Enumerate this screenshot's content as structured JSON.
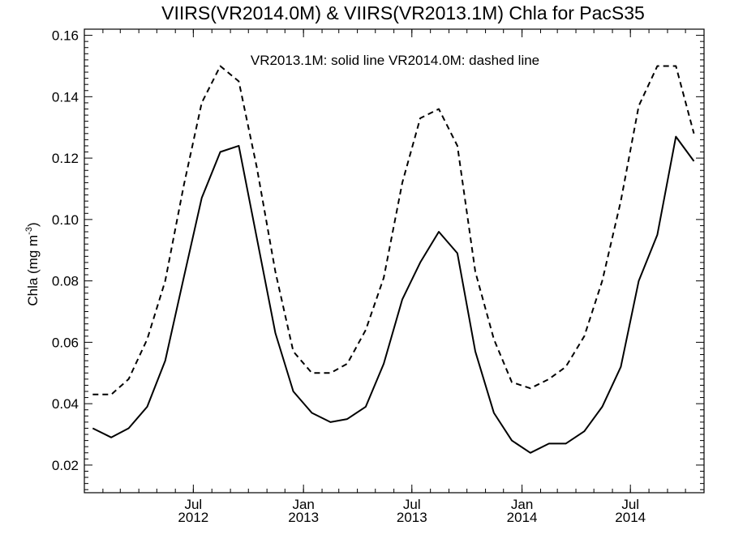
{
  "chart_data": {
    "type": "line",
    "title": "VIIRS(VR2014.0M) & VIIRS(VR2013.1M)  Chla for PacS35",
    "ylabel": "Chla (mg m",
    "ylabel_sup": "-3",
    "ylabel_close": ")",
    "annotation": "VR2013.1M: solid line   VR2014.0M: dashed line",
    "ylim": [
      0.011,
      0.162
    ],
    "xlim": [
      "2012-01-01",
      "2014-11-01"
    ],
    "yticks": [
      0.02,
      0.04,
      0.06,
      0.08,
      0.1,
      0.12,
      0.14,
      0.16
    ],
    "ytick_labels": [
      "0.02",
      "0.04",
      "0.06",
      "0.08",
      "0.10",
      "0.12",
      "0.14",
      "0.16"
    ],
    "xticks": [
      {
        "date": "2012-07-01",
        "month": "Jul",
        "year": "2012"
      },
      {
        "date": "2013-01-01",
        "month": "Jan",
        "year": "2013"
      },
      {
        "date": "2013-07-01",
        "month": "Jul",
        "year": "2013"
      },
      {
        "date": "2014-01-01",
        "month": "Jan",
        "year": "2014"
      },
      {
        "date": "2014-07-01",
        "month": "Jul",
        "year": "2014"
      }
    ],
    "grid": false,
    "x": [
      "2012-01",
      "2012-02",
      "2012-03",
      "2012-04",
      "2012-05",
      "2012-06",
      "2012-07",
      "2012-08",
      "2012-09",
      "2012-10",
      "2012-11",
      "2012-12",
      "2013-01",
      "2013-02",
      "2013-03",
      "2013-04",
      "2013-05",
      "2013-06",
      "2013-07",
      "2013-08",
      "2013-09",
      "2013-10",
      "2013-11",
      "2013-12",
      "2014-01",
      "2014-02",
      "2014-03",
      "2014-04",
      "2014-05",
      "2014-06",
      "2014-07",
      "2014-08",
      "2014-09",
      "2014-10"
    ],
    "series": [
      {
        "name": "VR2013.1M",
        "style": "solid",
        "color": "#000000",
        "values": [
          0.032,
          0.029,
          0.032,
          0.039,
          0.054,
          0.081,
          0.107,
          0.122,
          0.124,
          0.094,
          0.063,
          0.044,
          0.037,
          0.034,
          0.035,
          0.039,
          0.053,
          0.074,
          0.086,
          0.096,
          0.089,
          0.057,
          0.037,
          0.028,
          0.024,
          0.027,
          0.027,
          0.031,
          0.039,
          0.052,
          0.08,
          0.095,
          0.127,
          0.119
        ]
      },
      {
        "name": "VR2014.0M",
        "style": "dashed",
        "color": "#000000",
        "values": [
          0.043,
          0.043,
          0.048,
          0.061,
          0.08,
          0.111,
          0.138,
          0.15,
          0.145,
          0.117,
          0.083,
          0.057,
          0.05,
          0.05,
          0.053,
          0.064,
          0.081,
          0.112,
          0.133,
          0.136,
          0.124,
          0.083,
          0.061,
          0.047,
          0.045,
          0.048,
          0.052,
          0.062,
          0.08,
          0.106,
          0.137,
          0.15,
          0.15,
          0.128
        ]
      }
    ]
  }
}
